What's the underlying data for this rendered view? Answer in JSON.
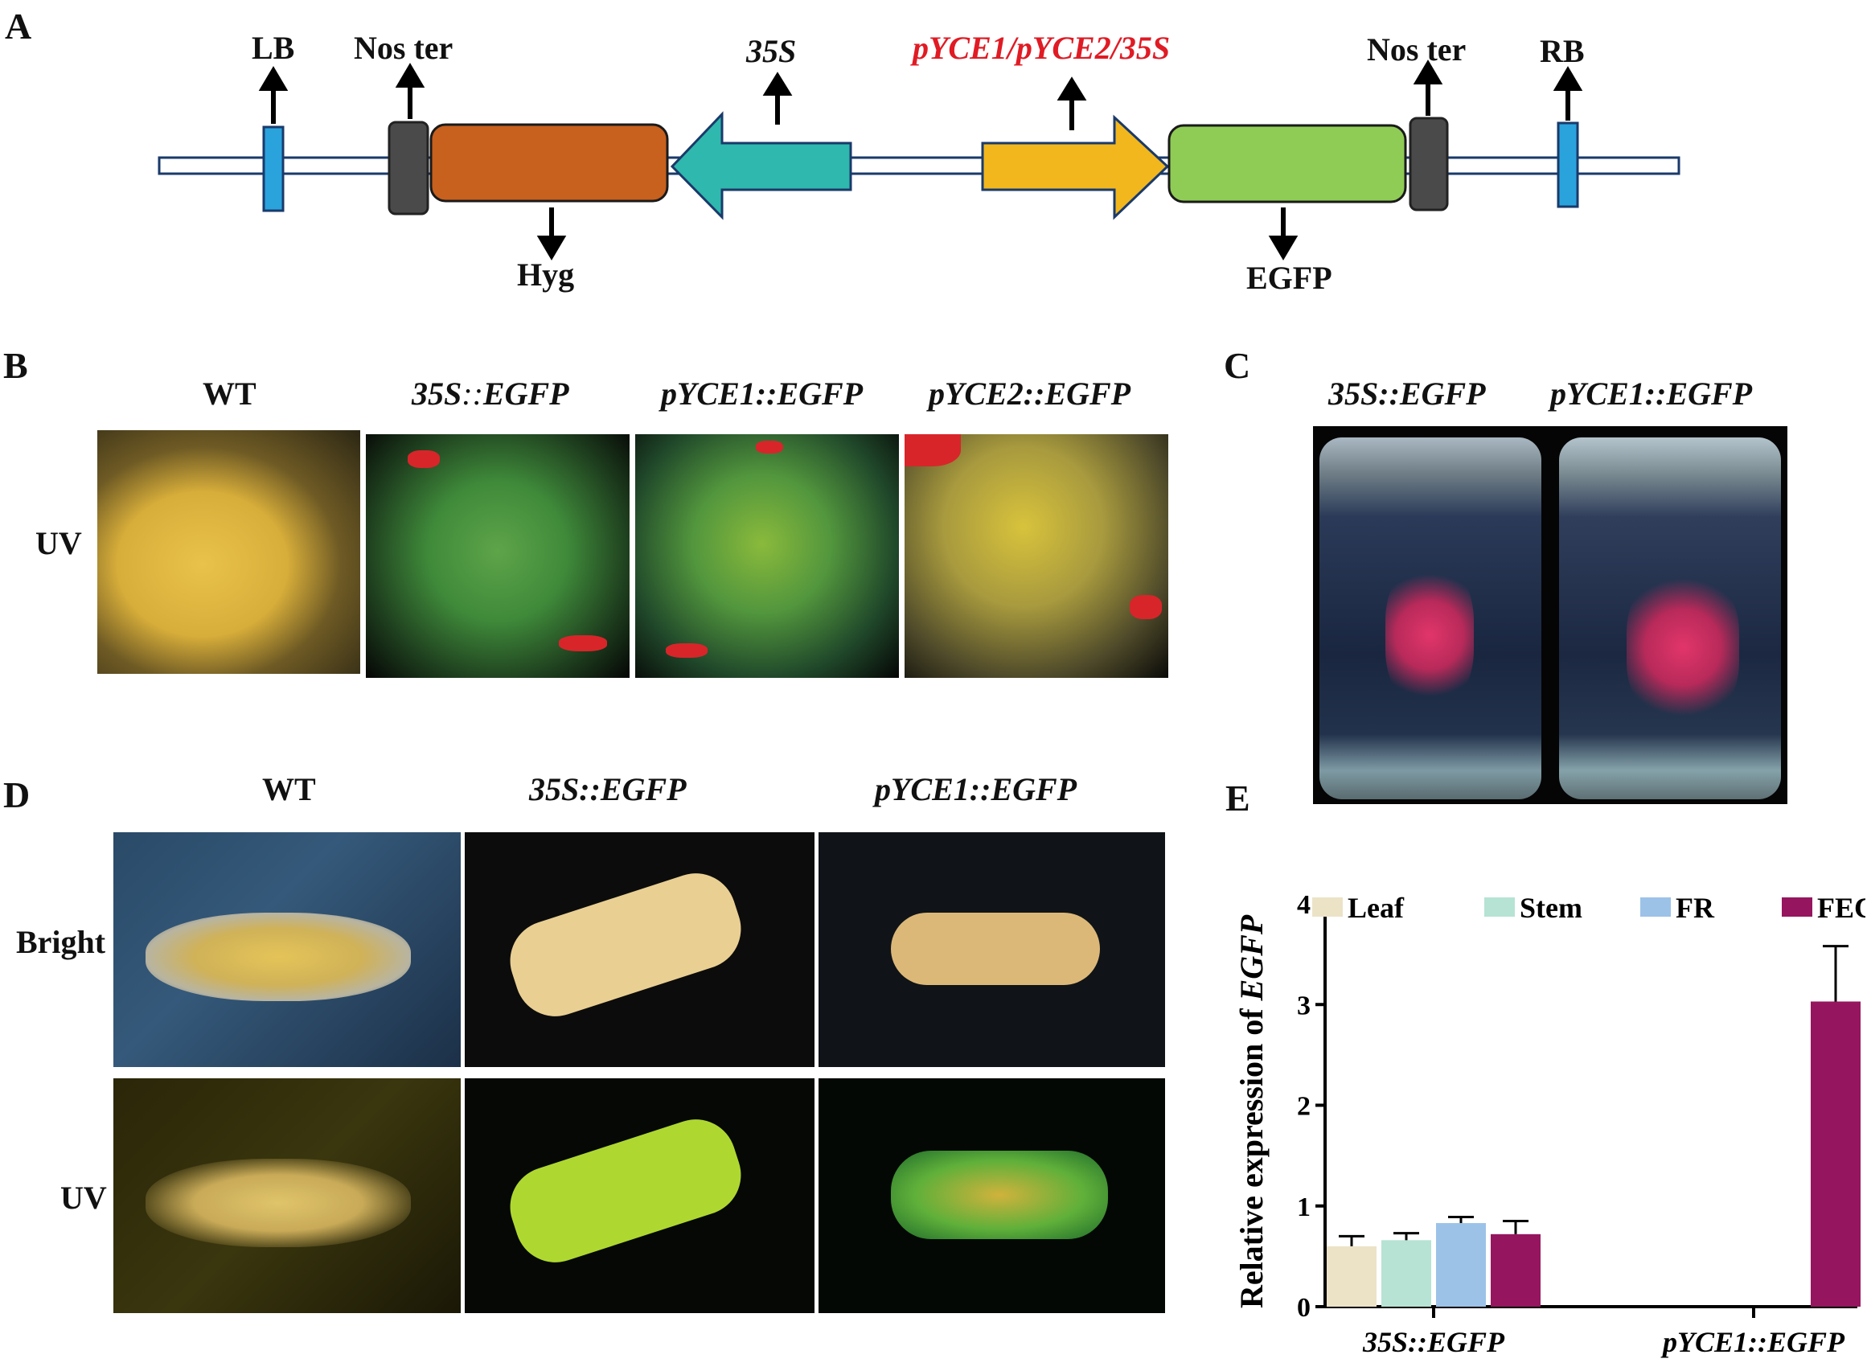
{
  "panels": {
    "a": "A",
    "b": "B",
    "c": "C",
    "d": "D",
    "e": "E"
  },
  "construct": {
    "lb": "LB",
    "nos_ter_left": "Nos ter",
    "promoter_35s": "35S",
    "promoter_var": "pYCE1/pYCE2/35S",
    "nos_ter_right": "Nos ter",
    "rb": "RB",
    "hyg": "Hyg",
    "egfp": "EGFP",
    "colors": {
      "border": "#1a3a6a",
      "lb_rb": "#2aa3dd",
      "nos": "#4a4a4a",
      "hyg": "#c8601e",
      "p35s": "#2fb8ad",
      "pvar": "#f2b71d",
      "egfp": "#8fcc55",
      "promoter_label": "#e01b24"
    }
  },
  "panel_b": {
    "headers": {
      "wt": "WT",
      "s35": {
        "gene": "35S",
        "sep": "::",
        "reporter": "EGFP"
      },
      "p1": {
        "gene": "pYCE1",
        "sep": "::",
        "reporter": "EGFP"
      },
      "p2": {
        "gene": "pYCE2",
        "sep": "::",
        "reporter": "EGFP"
      }
    },
    "row_label": "UV"
  },
  "panel_c": {
    "headers": {
      "s35": {
        "gene": "35S",
        "sep": "::",
        "reporter": "EGFP"
      },
      "p1": {
        "gene": "pYCE1",
        "sep": "::",
        "reporter": "EGFP"
      }
    }
  },
  "panel_d": {
    "headers": {
      "wt": "WT",
      "s35": {
        "gene": "35S",
        "sep": "::",
        "reporter": "EGFP"
      },
      "p1": {
        "gene": "pYCE1",
        "sep": "::",
        "reporter": "EGFP"
      }
    },
    "row_labels": {
      "bright": "Bright",
      "uv": "UV"
    }
  },
  "chart_data": {
    "type": "bar",
    "ylabel_prefix": "Relative expression of ",
    "ylabel_gene": "EGFP",
    "ylim": [
      0,
      4
    ],
    "yticks": [
      "0",
      "1",
      "2",
      "3",
      "4"
    ],
    "categories": [
      "35S::EGFP",
      "pYCE1::EGFP"
    ],
    "series": [
      {
        "name": "Leaf",
        "color": "#ece3c7",
        "values": [
          0.6,
          0.0
        ],
        "errors": [
          0.1,
          0.0
        ]
      },
      {
        "name": "Stem",
        "color": "#b6e3d4",
        "values": [
          0.66,
          0.0
        ],
        "errors": [
          0.07,
          0.0
        ]
      },
      {
        "name": "FR",
        "color": "#9cc2e8",
        "values": [
          0.83,
          0.0
        ],
        "errors": [
          0.06,
          0.0
        ]
      },
      {
        "name": "FEC",
        "color": "#96155f",
        "values": [
          0.72,
          3.03
        ],
        "errors": [
          0.13,
          0.55
        ]
      }
    ],
    "legend_position": "top"
  }
}
